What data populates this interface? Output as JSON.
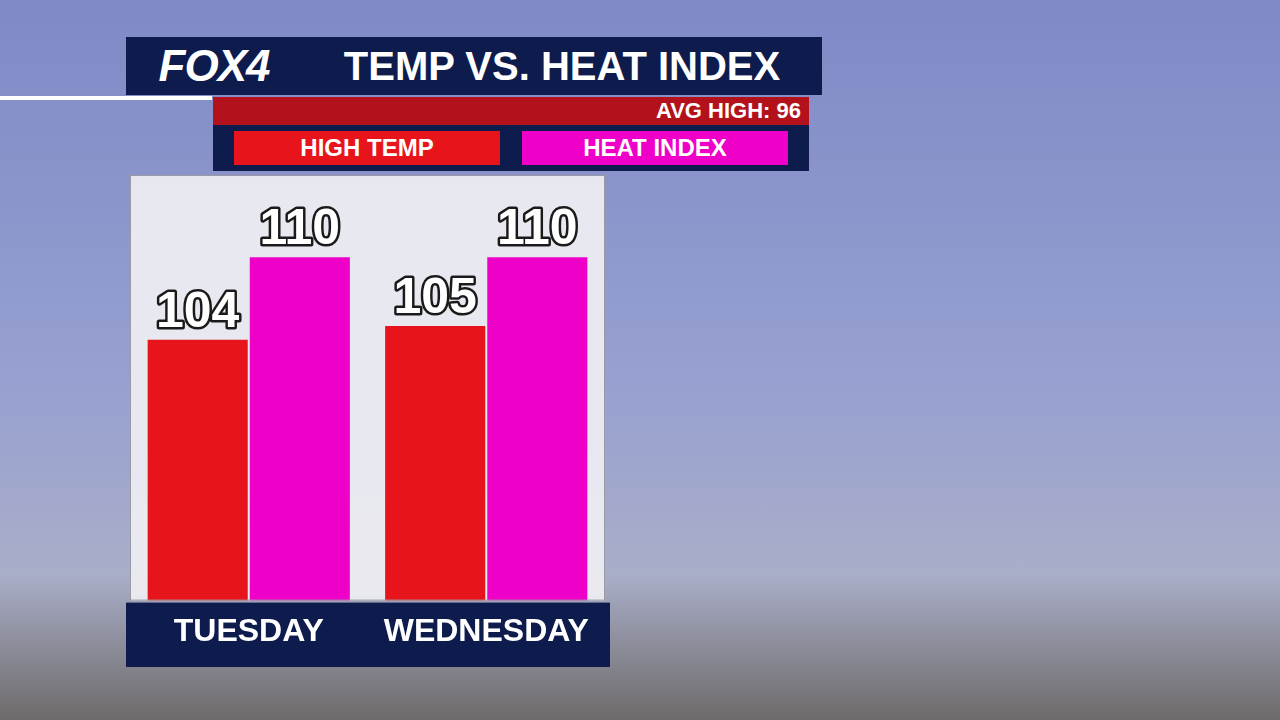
{
  "chart_data": {
    "type": "bar",
    "title": "TEMP VS. HEAT INDEX",
    "annotations": [
      "FOX4",
      "AVG HIGH: 96"
    ],
    "categories": [
      "TUESDAY",
      "WEDNESDAY"
    ],
    "series": [
      {
        "name": "HIGH TEMP",
        "color": "#e8141b",
        "values": [
          104,
          105
        ]
      },
      {
        "name": "HEAT INDEX",
        "color": "#ee00c8",
        "values": [
          110,
          110
        ]
      }
    ],
    "ylim": [
      85,
      116
    ],
    "grid": false,
    "legend": "top",
    "data_labels": true,
    "tick_labels": "x"
  }
}
